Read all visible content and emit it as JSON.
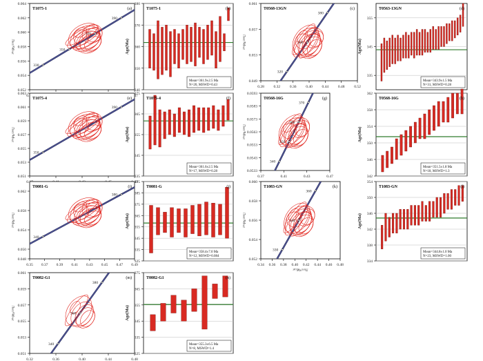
{
  "chart_data": [
    {
      "id": "a",
      "type": "concordia",
      "panel_label": "(a)",
      "sample": "T1075-1",
      "xlim": [
        0.37,
        0.48
      ],
      "ylim": [
        0.052,
        0.064
      ],
      "xticks": [
        "0.37",
        "0.41",
        "0.43",
        "0.45",
        "0.47"
      ],
      "yticks": [
        "0.052",
        "0.054",
        "0.056",
        "0.058",
        "0.060",
        "0.062",
        "0.064"
      ],
      "ylabel": "²⁰⁶Pb/²³⁸U",
      "xlabel": "",
      "age_labels": [
        "330",
        "350",
        "370",
        "390"
      ]
    },
    {
      "id": "b",
      "type": "bar",
      "panel_label": "(b)",
      "sample": "T1075-1",
      "ylim": [
        340,
        380
      ],
      "yticks": [
        "340",
        "350",
        "360",
        "370",
        "380"
      ],
      "ylabel": "Age(Ma)",
      "mean_age": 361.9,
      "bars": [
        [
          350,
          368
        ],
        [
          349,
          366
        ],
        [
          345,
          372
        ],
        [
          347,
          369
        ],
        [
          349,
          370
        ],
        [
          346,
          367
        ],
        [
          352,
          368
        ],
        [
          350,
          366
        ],
        [
          354,
          368
        ],
        [
          352,
          370
        ],
        [
          353,
          369
        ],
        [
          351,
          371
        ],
        [
          355,
          369
        ],
        [
          352,
          368
        ],
        [
          354,
          370
        ],
        [
          356,
          372
        ],
        [
          350,
          367
        ],
        [
          353,
          374
        ],
        [
          358,
          366
        ],
        [
          372,
          378
        ]
      ],
      "stats": [
        "Mean=361.9±2.5 Ma",
        "N=20, MSWD=0.43"
      ]
    },
    {
      "id": "c",
      "type": "concordia",
      "panel_label": "(c)",
      "sample": "T0568-13GN",
      "xlim": [
        0.28,
        0.52
      ],
      "ylim": [
        0.049,
        0.061
      ],
      "xticks": [
        "0.28",
        "0.32",
        "0.36",
        "0.40",
        "0.44",
        "0.48",
        "0.52"
      ],
      "yticks": [
        "0.049",
        "0.053",
        "0.057",
        "0.061"
      ],
      "ylabel": "²⁰⁶Pb/²³⁸U",
      "xlabel": "",
      "age_labels": [
        "320",
        "360",
        "380"
      ]
    },
    {
      "id": "d",
      "type": "bar",
      "panel_label": "(d)",
      "sample": "T0563-13GN",
      "ylim": [
        330,
        360
      ],
      "yticks": [
        "335",
        "345",
        "355"
      ],
      "ylabel": "Age(Ma)",
      "mean_age": 343.9,
      "bars": [
        [
          333,
          346
        ],
        [
          336,
          348
        ],
        [
          337,
          347
        ],
        [
          338,
          348
        ],
        [
          339,
          349
        ],
        [
          339,
          348
        ],
        [
          340,
          349
        ],
        [
          340,
          348
        ],
        [
          341,
          349
        ],
        [
          341,
          350
        ],
        [
          341,
          349
        ],
        [
          342,
          350
        ],
        [
          341,
          350
        ],
        [
          342,
          351
        ],
        [
          342,
          350
        ],
        [
          342,
          351
        ],
        [
          343,
          351
        ],
        [
          343,
          350
        ],
        [
          343,
          351
        ],
        [
          344,
          352
        ],
        [
          344,
          351
        ],
        [
          344,
          352
        ],
        [
          345,
          352
        ],
        [
          345,
          352
        ],
        [
          346,
          353
        ],
        [
          347,
          353
        ],
        [
          347,
          354
        ],
        [
          348,
          354
        ],
        [
          349,
          355
        ],
        [
          350,
          356
        ],
        [
          352,
          360
        ]
      ],
      "stats": [
        "Mean=343.9±1.5 Ma",
        "N=31, MSWD=0.28"
      ]
    },
    {
      "id": "e",
      "type": "concordia",
      "panel_label": "(e)",
      "sample": "T1075-4",
      "xlim": [
        0.37,
        0.48
      ],
      "ylim": [
        0.051,
        0.063
      ],
      "xticks": [
        "0.37",
        "0.41",
        "0.43",
        "0.45",
        "0.47"
      ],
      "yticks": [
        "0.051",
        "0.053",
        "0.055",
        "0.057",
        "0.059",
        "0.061",
        "0.063"
      ],
      "ylabel": "²⁰⁶Pb/²³⁸U",
      "xlabel": "",
      "age_labels": [
        "350",
        "390"
      ]
    },
    {
      "id": "f",
      "type": "bar",
      "panel_label": "(f)",
      "sample": "T1075-4",
      "ylim": [
        335,
        375
      ],
      "yticks": [
        "335",
        "345",
        "355",
        "365",
        "375"
      ],
      "ylabel": "Age(Ma)",
      "mean_age": 361.6,
      "bars": [
        [
          348,
          364
        ],
        [
          350,
          374
        ],
        [
          349,
          367
        ],
        [
          353,
          366
        ],
        [
          355,
          367
        ],
        [
          354,
          365
        ],
        [
          356,
          368
        ],
        [
          355,
          366
        ],
        [
          354,
          367
        ],
        [
          356,
          369
        ],
        [
          357,
          368
        ],
        [
          356,
          368
        ],
        [
          357,
          368
        ],
        [
          358,
          369
        ],
        [
          357,
          367
        ],
        [
          359,
          369
        ],
        [
          362,
          372
        ]
      ],
      "stats": [
        "Mean=361.6±2.5 Ma",
        "N=17, MSWD=0.28"
      ]
    },
    {
      "id": "g",
      "type": "concordia",
      "panel_label": "(g)",
      "sample": "T0568-16G",
      "xlim": [
        0.37,
        0.47
      ],
      "ylim": [
        0.0533,
        0.0593
      ],
      "xticks": [
        "0.37",
        "0.41",
        "0.43",
        "0.47"
      ],
      "yticks": [
        "0.0533",
        "0.0543",
        "0.0553",
        "0.0563",
        "0.0573",
        "0.0583",
        "0.0593"
      ],
      "ylabel": "²⁰⁶Pb/²³⁸U",
      "xlabel": "",
      "age_labels": [
        "340",
        "350",
        "360",
        "370"
      ]
    },
    {
      "id": "h",
      "type": "bar",
      "panel_label": "(h)",
      "sample": "T0568-16G",
      "ylim": [
        342,
        362
      ],
      "yticks": [
        "342",
        "346",
        "350",
        "354",
        "358",
        "362"
      ],
      "ylabel": "Age(Ma)",
      "mean_age": 351.5,
      "bars": [
        [
          343,
          347
        ],
        [
          344,
          348
        ],
        [
          345,
          349
        ],
        [
          346,
          351
        ],
        [
          347,
          352
        ],
        [
          348,
          353
        ],
        [
          349,
          354
        ],
        [
          350,
          355
        ],
        [
          351,
          356
        ],
        [
          351,
          357
        ],
        [
          352,
          358
        ],
        [
          353,
          359
        ],
        [
          354,
          360
        ],
        [
          355,
          360
        ],
        [
          355,
          361
        ],
        [
          356,
          362
        ],
        [
          357,
          362
        ],
        [
          357,
          363
        ]
      ],
      "stats": [
        "Mean=351.5±1.8 Ma",
        "N=18, MSWD=1.3"
      ]
    },
    {
      "id": "i",
      "type": "concordia",
      "panel_label": "(i)",
      "sample": "T0081-G",
      "xlim": [
        0.35,
        0.49
      ],
      "ylim": [
        0.048,
        0.064
      ],
      "xticks": [
        "0.35",
        "0.37",
        "0.39",
        "0.41",
        "0.43",
        "0.45",
        "0.47",
        "0.49"
      ],
      "yticks": [
        "0.048",
        "0.050",
        "0.054",
        "0.058",
        "0.062"
      ],
      "ylabel": "²⁰⁶Pb/²³⁸U",
      "xlabel": "",
      "age_labels": [
        "340",
        "380"
      ]
    },
    {
      "id": "j",
      "type": "bar",
      "panel_label": "(j)",
      "sample": "T0081-G",
      "ylim": [
        325,
        395
      ],
      "yticks": [
        "325",
        "335",
        "345",
        "355",
        "365",
        "375",
        "385",
        "395"
      ],
      "ylabel": "Age(Ma)",
      "mean_age": 358.4,
      "bars": [
        [
          332,
          374
        ],
        [
          348,
          372
        ],
        [
          350,
          368
        ],
        [
          346,
          372
        ],
        [
          350,
          371
        ],
        [
          346,
          371
        ],
        [
          349,
          374
        ],
        [
          347,
          375
        ],
        [
          348,
          377
        ],
        [
          346,
          376
        ],
        [
          348,
          375
        ],
        [
          345,
          390
        ]
      ],
      "stats": [
        "Mean=358.4±7.0 Ma",
        "N=12, MSWD=0.084"
      ]
    },
    {
      "id": "k",
      "type": "concordia",
      "panel_label": "(k)",
      "sample": "T1083-GN",
      "xlim": [
        0.34,
        0.48
      ],
      "ylim": [
        0.052,
        0.06
      ],
      "xticks": [
        "0.34",
        "0.36",
        "0.38",
        "0.40",
        "0.42",
        "0.44",
        "0.46",
        "0.48"
      ],
      "yticks": [
        "0.052",
        "0.054",
        "0.056",
        "0.058",
        "0.060"
      ],
      "ylabel": "²⁰⁶Pb/²³⁸U",
      "xlabel": "²⁰⁷Pb/²³⁵U",
      "age_labels": [
        "330",
        "340",
        "360"
      ]
    },
    {
      "id": "l",
      "type": "bar",
      "panel_label": "(l)",
      "sample": "T1083-GN",
      "ylim": [
        334,
        354
      ],
      "yticks": [
        "334",
        "338",
        "342",
        "346",
        "350",
        "354"
      ],
      "ylabel": "Age(Ma)",
      "mean_age": 344.8,
      "bars": [
        [
          337,
          343
        ],
        [
          339,
          346
        ],
        [
          340,
          345
        ],
        [
          341,
          346
        ],
        [
          341,
          346
        ],
        [
          342,
          347
        ],
        [
          342,
          347
        ],
        [
          342,
          347
        ],
        [
          343,
          348
        ],
        [
          343,
          348
        ],
        [
          343,
          348
        ],
        [
          344,
          349
        ],
        [
          344,
          348
        ],
        [
          344,
          349
        ],
        [
          345,
          349
        ],
        [
          345,
          350
        ],
        [
          345,
          350
        ],
        [
          346,
          351
        ],
        [
          347,
          351
        ],
        [
          347,
          352
        ],
        [
          348,
          352
        ],
        [
          348,
          353
        ],
        [
          349,
          353
        ]
      ],
      "stats": [
        "Mean=344.8±1.0 Ma",
        "N=23, MSWD=1.00"
      ]
    },
    {
      "id": "m",
      "type": "concordia",
      "panel_label": "(m)",
      "sample": "T0082-G1",
      "xlim": [
        0.32,
        0.48
      ],
      "ylim": [
        0.051,
        0.061
      ],
      "xticks": [
        "0.32",
        "0.36",
        "0.40",
        "0.44",
        "0.48"
      ],
      "yticks": [
        "0.051",
        "0.053",
        "0.055",
        "0.057",
        "0.059",
        "0.061"
      ],
      "ylabel": "²⁰⁶Pb/²³⁸U",
      "xlabel": "²⁰⁷Pb/²³⁵U",
      "age_labels": [
        "340",
        "360",
        "380"
      ]
    },
    {
      "id": "n",
      "type": "bar",
      "panel_label": "(n)",
      "sample": "T0082-G1",
      "ylim": [
        325,
        375
      ],
      "yticks": [
        "325",
        "335",
        "345",
        "355",
        "365",
        "375"
      ],
      "ylabel": "Age(Ma)",
      "mean_age": 355.3,
      "bars": [
        [
          339,
          349
        ],
        [
          345,
          356
        ],
        [
          350,
          361
        ],
        [
          345,
          358
        ],
        [
          351,
          365
        ],
        [
          340,
          373
        ],
        [
          359,
          368
        ],
        [
          360,
          373
        ]
      ],
      "stats": [
        "Mean=355.3±6.5 Ma",
        "N=8, MSWD=1.4"
      ]
    }
  ]
}
